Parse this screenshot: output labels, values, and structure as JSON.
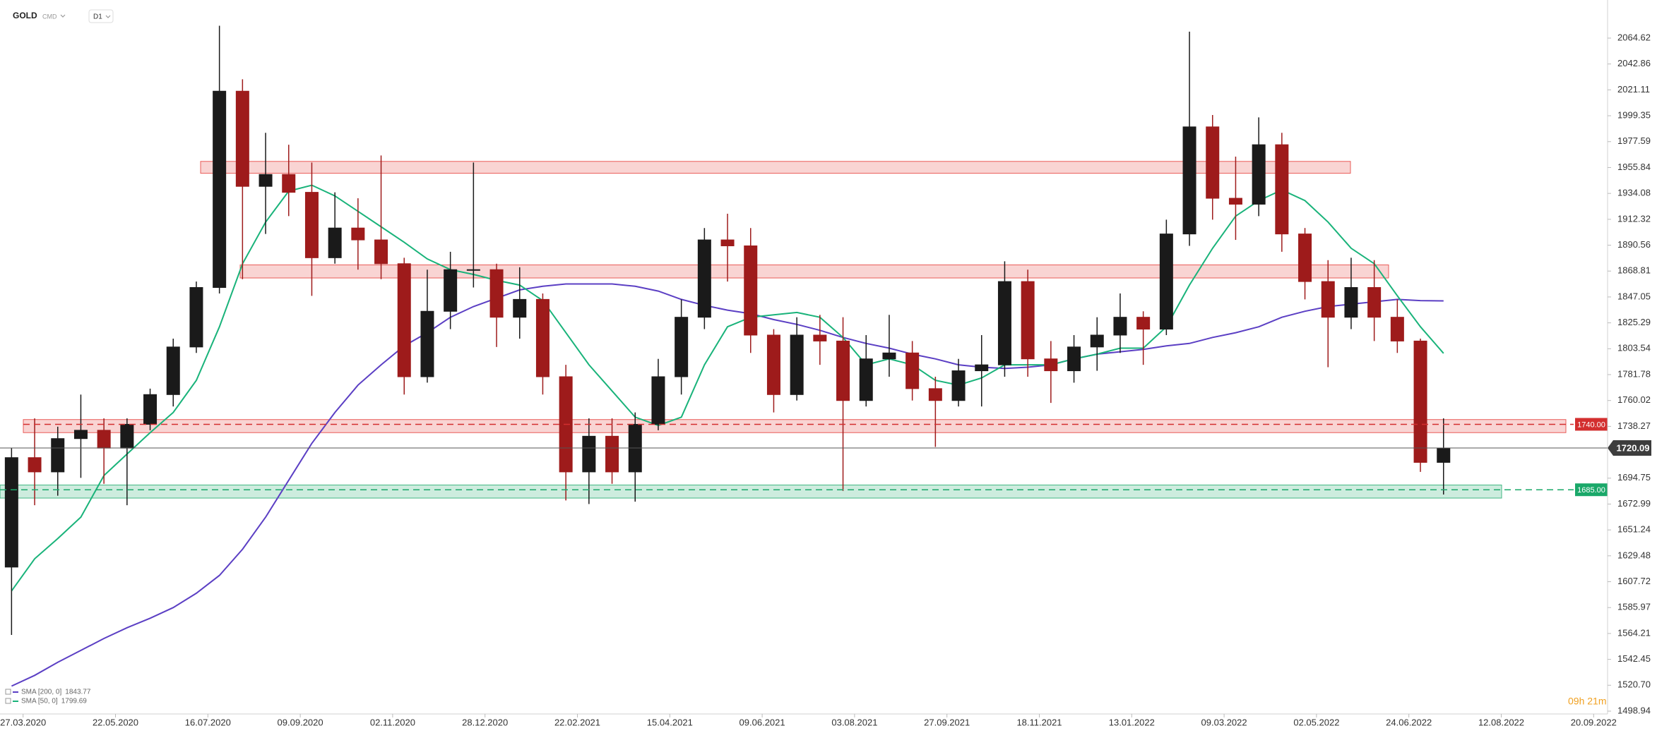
{
  "chart_data": {
    "type": "candlestick",
    "symbol": "GOLD",
    "market": "CMD",
    "interval": "D1",
    "up_color": "#1a1a1a",
    "down_color": "#9e1b1b",
    "xtick_labels": [
      "27.03.2020",
      "22.05.2020",
      "16.07.2020",
      "09.09.2020",
      "02.11.2020",
      "28.12.2020",
      "22.02.2021",
      "15.04.2021",
      "09.06.2021",
      "03.08.2021",
      "27.09.2021",
      "18.11.2021",
      "13.01.2022",
      "09.03.2022",
      "02.05.2022",
      "24.06.2022",
      "12.08.2022",
      "20.09.2022"
    ],
    "candles": {
      "open": [
        1620,
        1712,
        1700,
        1728,
        1735,
        1720,
        1740,
        1765,
        1805,
        1855,
        2020,
        1940,
        1950,
        1935,
        1880,
        1905,
        1895,
        1875,
        1780,
        1835,
        1870,
        1870,
        1830,
        1845,
        1780,
        1700,
        1730,
        1700,
        1740,
        1780,
        1830,
        1895,
        1890,
        1815,
        1765,
        1815,
        1810,
        1760,
        1795,
        1800,
        1770,
        1760,
        1785,
        1790,
        1860,
        1795,
        1785,
        1805,
        1815,
        1830,
        1820,
        1900,
        1990,
        1930,
        1925,
        1975,
        1900,
        1860,
        1830,
        1855,
        1830,
        1810,
        1708
      ],
      "high": [
        1720,
        1745,
        1738,
        1765,
        1745,
        1745,
        1770,
        1812,
        1860,
        2075,
        2030,
        1985,
        1975,
        1960,
        1935,
        1930,
        1966,
        1880,
        1870,
        1885,
        1960,
        1875,
        1872,
        1850,
        1790,
        1745,
        1745,
        1750,
        1795,
        1845,
        1905,
        1917,
        1905,
        1820,
        1830,
        1832,
        1830,
        1815,
        1832,
        1810,
        1780,
        1795,
        1815,
        1877,
        1870,
        1810,
        1815,
        1830,
        1850,
        1835,
        1912,
        2070,
        2000,
        1965,
        1998,
        1985,
        1905,
        1878,
        1880,
        1878,
        1845,
        1812,
        1745
      ],
      "low": [
        1563,
        1672,
        1680,
        1695,
        1690,
        1672,
        1735,
        1755,
        1800,
        1850,
        1862,
        1900,
        1915,
        1848,
        1875,
        1870,
        1862,
        1765,
        1775,
        1820,
        1855,
        1805,
        1812,
        1765,
        1676,
        1673,
        1690,
        1675,
        1735,
        1765,
        1820,
        1860,
        1800,
        1750,
        1760,
        1790,
        1684,
        1755,
        1780,
        1760,
        1721,
        1755,
        1755,
        1780,
        1780,
        1758,
        1775,
        1785,
        1800,
        1790,
        1815,
        1890,
        1912,
        1895,
        1915,
        1885,
        1845,
        1788,
        1820,
        1810,
        1800,
        1700,
        1681
      ],
      "close": [
        1712,
        1700,
        1728,
        1735,
        1720,
        1740,
        1765,
        1805,
        1855,
        2020,
        1940,
        1950,
        1935,
        1880,
        1905,
        1895,
        1875,
        1780,
        1835,
        1870,
        1870,
        1830,
        1845,
        1780,
        1700,
        1730,
        1700,
        1740,
        1780,
        1830,
        1895,
        1890,
        1815,
        1765,
        1815,
        1810,
        1760,
        1795,
        1800,
        1770,
        1760,
        1785,
        1790,
        1860,
        1795,
        1785,
        1805,
        1815,
        1830,
        1820,
        1900,
        1990,
        1930,
        1925,
        1975,
        1900,
        1860,
        1830,
        1855,
        1830,
        1810,
        1708,
        1720.09
      ]
    },
    "series": [
      {
        "name": "SMA [200, 0]",
        "color": "#5b3fc4",
        "values": [
          1520,
          1529,
          1540,
          1550,
          1560,
          1569,
          1577,
          1586,
          1598,
          1613,
          1635,
          1662,
          1693,
          1724,
          1750,
          1773,
          1790,
          1806,
          1817,
          1830,
          1839,
          1846,
          1853,
          1856,
          1858,
          1858,
          1858,
          1856,
          1852,
          1845,
          1840,
          1836,
          1833,
          1828,
          1824,
          1819,
          1813,
          1808,
          1804,
          1799,
          1795,
          1790,
          1788,
          1787,
          1788,
          1790,
          1795,
          1799,
          1801,
          1803,
          1806,
          1808,
          1813,
          1817,
          1822,
          1830,
          1835,
          1839,
          1841,
          1843,
          1845,
          1844,
          1843.77
        ]
      },
      {
        "name": "SMA [50, 0]",
        "color": "#19b37a",
        "values": [
          1600,
          1627,
          1644,
          1662,
          1697,
          1715,
          1733,
          1750,
          1777,
          1822,
          1875,
          1910,
          1936,
          1941,
          1932,
          1919,
          1906,
          1893,
          1879,
          1870,
          1866,
          1861,
          1857,
          1844,
          1817,
          1790,
          1768,
          1746,
          1739,
          1746,
          1790,
          1822,
          1830,
          1832,
          1834,
          1830,
          1813,
          1790,
          1795,
          1790,
          1777,
          1773,
          1779,
          1790,
          1790,
          1790,
          1795,
          1799,
          1804,
          1804,
          1822,
          1857,
          1888,
          1915,
          1928,
          1937,
          1928,
          1910,
          1888,
          1875,
          1848,
          1822,
          1799.69
        ]
      }
    ],
    "zones": [
      {
        "low": 1951,
        "high": 1961,
        "color": "#e53935"
      },
      {
        "low": 1863,
        "high": 1874,
        "color": "#e53935"
      },
      {
        "low": 1733,
        "high": 1744,
        "color": "#e53935"
      },
      {
        "low": 1678,
        "high": 1689,
        "color": "#1aa869"
      }
    ],
    "levels": [
      {
        "value": 1740,
        "label": "1740.00",
        "color": "#d32f2f"
      },
      {
        "value": 1685,
        "label": "1685.00",
        "color": "#1aa869"
      }
    ],
    "last_price": 1720.09,
    "countdown": "09h 21m",
    "ylim": [
      1497.75,
      2096.64
    ],
    "yticks": [
      2064.62,
      2042.86,
      2021.11,
      1999.35,
      1977.59,
      1955.84,
      1934.08,
      1912.32,
      {
        "value": 1890.56,
        "label": "1890.56"
      },
      1868.81,
      1847.05,
      1825.29,
      1803.54,
      1781.78,
      1760.02,
      1738.27,
      1694.75,
      1672.99,
      1651.24,
      1629.48,
      1607.72,
      1585.97,
      1564.21,
      1542.45,
      {
        "value": 1520.7,
        "label": "1520.70"
      },
      1498.94
    ]
  }
}
